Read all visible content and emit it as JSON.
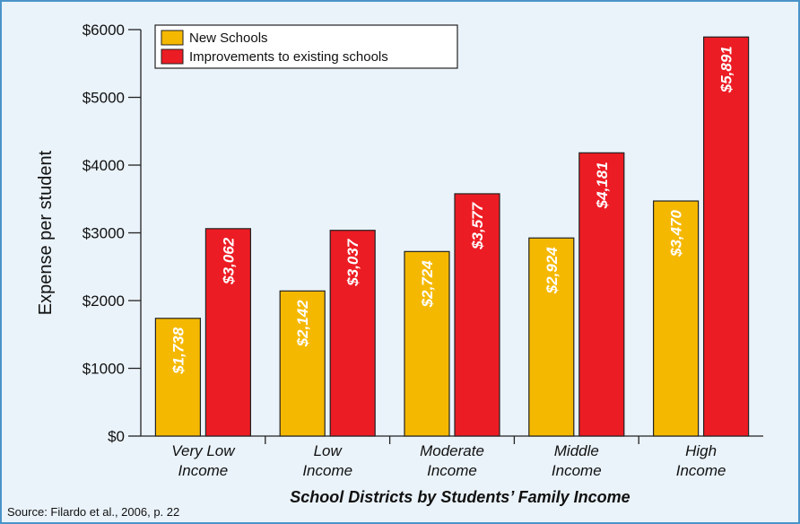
{
  "chart_data": {
    "type": "bar",
    "xlabel": "School Districts by Students’ Family Income",
    "ylabel": "Expense per student",
    "ylim": [
      0,
      6000
    ],
    "yticks": [
      0,
      1000,
      2000,
      3000,
      4000,
      5000,
      6000
    ],
    "ytick_labels": [
      "$0",
      "$1000",
      "$2000",
      "$3000",
      "$4000",
      "$5000",
      "$6000"
    ],
    "categories": [
      [
        "Very Low",
        "Income"
      ],
      [
        "Low",
        "Income"
      ],
      [
        "Moderate",
        "Income"
      ],
      [
        "Middle",
        "Income"
      ],
      [
        "High",
        "Income"
      ]
    ],
    "series": [
      {
        "name": "New Schools",
        "color": "#f5b800",
        "values": [
          1738,
          2142,
          2724,
          2924,
          3470
        ],
        "labels": [
          "$1,738",
          "$2,142",
          "$2,724",
          "$2,924",
          "$3,470"
        ]
      },
      {
        "name": "Improvements to existing schools",
        "color": "#ec1c24",
        "values": [
          3062,
          3037,
          3577,
          4181,
          5891
        ],
        "labels": [
          "$3,062",
          "$3,037",
          "$3,577",
          "$4,181",
          "$5,891"
        ]
      }
    ],
    "legend_position": "top-left",
    "grid": false,
    "source": "Source: Filardo et al., 2006, p. 22"
  }
}
